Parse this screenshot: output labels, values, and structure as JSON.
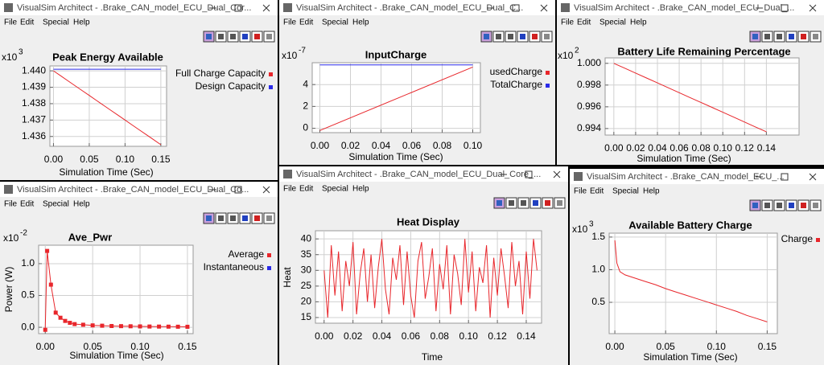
{
  "menu": [
    "File",
    "Edit",
    "Special",
    "Help"
  ],
  "windows": [
    {
      "title": "VisualSim Architect - .Brake_CAN_model_ECU_Dual_Cor..."
    },
    {
      "title": "VisualSim Architect - .Brake_CAN_model_ECU_Dual_C..."
    },
    {
      "title": "VisualSim Architect - .Brake_CAN_model_ECU_Dual_..."
    },
    {
      "title": "VisualSim Architect - .Brake_CAN_model_ECU_Dual_Co..."
    },
    {
      "title": "VisualSim Architect - .Brake_CAN_model_ECU_Dual_Core_..."
    },
    {
      "title": "VisualSim Architect - .Brake_CAN_model_ECU_..."
    }
  ],
  "chart_data": [
    {
      "type": "line",
      "title": "Peak Energy Available",
      "x_label": "Simulation Time (Sec)",
      "y_multiplier": {
        "base": "x10",
        "exponent": "3"
      },
      "grid": true,
      "xlim": [
        -0.005,
        0.158
      ],
      "ylim": [
        1.4354,
        1.4403
      ],
      "xticks": [
        {
          "value": 0,
          "label": "0.00"
        },
        0.05,
        {
          "value": 0.1,
          "label": "0.10"
        },
        0.15
      ],
      "yticks": [
        1.436,
        1.437,
        1.438,
        1.439,
        {
          "value": 1.44,
          "label": "1.440"
        }
      ],
      "series": [
        {
          "name": "Full Charge Capacity",
          "color": "#e8262b",
          "x": [
            0,
            0.01,
            0.02,
            0.03,
            0.04,
            0.05,
            0.06,
            0.07,
            0.08,
            0.09,
            0.1,
            0.11,
            0.12,
            0.13,
            0.14,
            0.15
          ],
          "values": [
            1.44,
            1.4397,
            1.4394,
            1.4391,
            1.4388,
            1.4385,
            1.4382,
            1.4379,
            1.4376,
            1.4373,
            1.437,
            1.4367,
            1.4364,
            1.4361,
            1.4358,
            1.4355
          ]
        },
        {
          "name": "Design Capacity",
          "color": "#2a2ae8",
          "x": [
            0,
            0.15
          ],
          "values": [
            1.4401,
            1.4401
          ]
        }
      ]
    },
    {
      "type": "line",
      "title": "InputCharge",
      "x_label": "Simulation Time (Sec)",
      "y_multiplier": {
        "base": "x10",
        "exponent": "-7"
      },
      "grid": true,
      "xlim": [
        -0.005,
        0.105
      ],
      "ylim": [
        -0.4,
        6
      ],
      "xticks": [
        {
          "value": 0,
          "label": "0.00"
        },
        0.02,
        0.04,
        0.06,
        0.08,
        {
          "value": 0.1,
          "label": "0.10"
        }
      ],
      "yticks": [
        0,
        2,
        4
      ],
      "series": [
        {
          "name": "usedCharge",
          "color": "#e8262b",
          "x": [
            0,
            0.1
          ],
          "values": [
            -0.2,
            5.6
          ]
        },
        {
          "name": "TotalCharge",
          "color": "#2a2ae8",
          "x": [
            0,
            0.1
          ],
          "values": [
            5.8,
            5.8
          ]
        }
      ]
    },
    {
      "type": "line",
      "title": "Battery Life Remaining Percentage",
      "x_label": "Simulation Time (Sec)",
      "y_multiplier": {
        "base": "x10",
        "exponent": "2"
      },
      "grid": true,
      "xlim": [
        -0.008,
        0.17
      ],
      "ylim": [
        0.9934,
        1.0005
      ],
      "xticks": [
        {
          "value": 0,
          "label": "0.00"
        },
        0.02,
        0.04,
        0.06,
        0.08,
        {
          "value": 0.1,
          "label": "0.10"
        },
        0.12,
        0.14
      ],
      "yticks": [
        0.994,
        0.996,
        0.998,
        {
          "value": 1,
          "label": "1.000"
        }
      ],
      "series": [
        {
          "color": "#e8262b",
          "x": [
            0,
            0.01,
            0.02,
            0.03,
            0.04,
            0.05,
            0.06,
            0.07,
            0.08,
            0.09,
            0.1,
            0.11,
            0.12,
            0.13,
            0.14
          ],
          "values": [
            1.0,
            0.99955,
            0.9991,
            0.99865,
            0.9982,
            0.99775,
            0.9973,
            0.99685,
            0.9964,
            0.99595,
            0.9955,
            0.99505,
            0.9946,
            0.99415,
            0.9937
          ]
        }
      ]
    },
    {
      "type": "line",
      "title": "Ave_Pwr",
      "x_label": "Simulation Time (Sec)",
      "y_label": "Power (W)",
      "y_multiplier": {
        "base": "x10",
        "exponent": "-2"
      },
      "grid": true,
      "markers": "square",
      "xlim": [
        -0.007,
        0.156
      ],
      "ylim": [
        -0.1,
        1.29
      ],
      "xticks": [
        {
          "value": 0,
          "label": "0.00"
        },
        0.05,
        {
          "value": 0.1,
          "label": "0.10"
        },
        0.15
      ],
      "yticks": [
        {
          "value": 0,
          "label": "0.0"
        },
        0.5,
        {
          "value": 1,
          "label": "1.0"
        }
      ],
      "series": [
        {
          "name": "Average",
          "color": "#e8262b",
          "x": [
            0,
            0.002,
            0.006,
            0.011,
            0.016,
            0.021,
            0.026,
            0.031,
            0.04,
            0.05,
            0.06,
            0.07,
            0.08,
            0.09,
            0.1,
            0.11,
            0.12,
            0.13,
            0.14,
            0.15
          ],
          "values": [
            -0.04,
            1.2,
            0.67,
            0.23,
            0.15,
            0.1,
            0.07,
            0.05,
            0.04,
            0.03,
            0.025,
            0.02,
            0.018,
            0.016,
            0.014,
            0.012,
            0.011,
            0.01,
            0.009,
            0.008
          ]
        },
        {
          "name": "Instantaneous",
          "color": "#2a2ae8"
        }
      ]
    },
    {
      "type": "line",
      "title": "Heat Display",
      "x_label": "Time",
      "y_label": "Heat",
      "grid": true,
      "xlim": [
        -0.006,
        0.1506
      ],
      "ylim": [
        13.2,
        42.6
      ],
      "xticks": [
        {
          "value": 0,
          "label": "0.00"
        },
        0.02,
        0.04,
        0.06,
        0.08,
        {
          "value": 0.1,
          "label": "0.10"
        },
        0.12,
        0.14
      ],
      "yticks": [
        15,
        20,
        25,
        30,
        35,
        40
      ],
      "series": [
        {
          "color": "#e8262b",
          "x": [
            0,
            0.0025,
            0.005,
            0.0075,
            0.01,
            0.0125,
            0.015,
            0.0175,
            0.02,
            0.0225,
            0.025,
            0.0275,
            0.03,
            0.0325,
            0.035,
            0.0375,
            0.04,
            0.0425,
            0.045,
            0.0475,
            0.05,
            0.0525,
            0.055,
            0.0575,
            0.06,
            0.0625,
            0.065,
            0.0675,
            0.07,
            0.0725,
            0.075,
            0.0775,
            0.08,
            0.0825,
            0.085,
            0.0875,
            0.09,
            0.0925,
            0.095,
            0.0975,
            0.1,
            0.1025,
            0.105,
            0.1075,
            0.11,
            0.1125,
            0.115,
            0.1175,
            0.12,
            0.1225,
            0.125,
            0.1275,
            0.13,
            0.1325,
            0.135,
            0.1375,
            0.14,
            0.1425,
            0.145,
            0.1475
          ],
          "values": [
            30,
            15,
            38,
            22,
            36,
            17,
            33,
            25,
            39,
            16,
            29,
            37,
            20,
            35,
            18,
            31,
            40,
            24,
            16,
            34,
            27,
            38,
            19,
            36,
            22,
            15,
            33,
            39,
            21,
            28,
            37,
            17,
            32,
            24,
            38,
            16,
            35,
            29,
            19,
            40,
            23,
            36,
            17,
            31,
            26,
            38,
            15,
            34,
            22,
            37,
            28,
            18,
            39,
            25,
            33,
            16,
            36,
            21,
            40,
            30
          ]
        }
      ]
    },
    {
      "type": "line",
      "title": "Available Battery Charge",
      "x_label": "Simulation Time (Sec)",
      "y_multiplier": {
        "base": "x10",
        "exponent": "3"
      },
      "grid": true,
      "xlim": [
        -0.0056,
        0.16
      ],
      "ylim": [
        0.02,
        1.56
      ],
      "xticks": [
        {
          "value": 0,
          "label": "0.00"
        },
        0.05,
        {
          "value": 0.1,
          "label": "0.10"
        },
        0.15
      ],
      "yticks": [
        0.5,
        {
          "value": 1,
          "label": "1.0"
        },
        1.5
      ],
      "series": [
        {
          "name": "Charge",
          "color": "#e8262b",
          "x": [
            0,
            0.002,
            0.005,
            0.01,
            0.02,
            0.03,
            0.04,
            0.05,
            0.06,
            0.07,
            0.08,
            0.09,
            0.1,
            0.11,
            0.12,
            0.13,
            0.14,
            0.15
          ],
          "values": [
            1.45,
            1.1,
            0.97,
            0.92,
            0.87,
            0.82,
            0.77,
            0.71,
            0.66,
            0.61,
            0.56,
            0.51,
            0.46,
            0.41,
            0.36,
            0.3,
            0.25,
            0.2
          ]
        }
      ]
    }
  ]
}
